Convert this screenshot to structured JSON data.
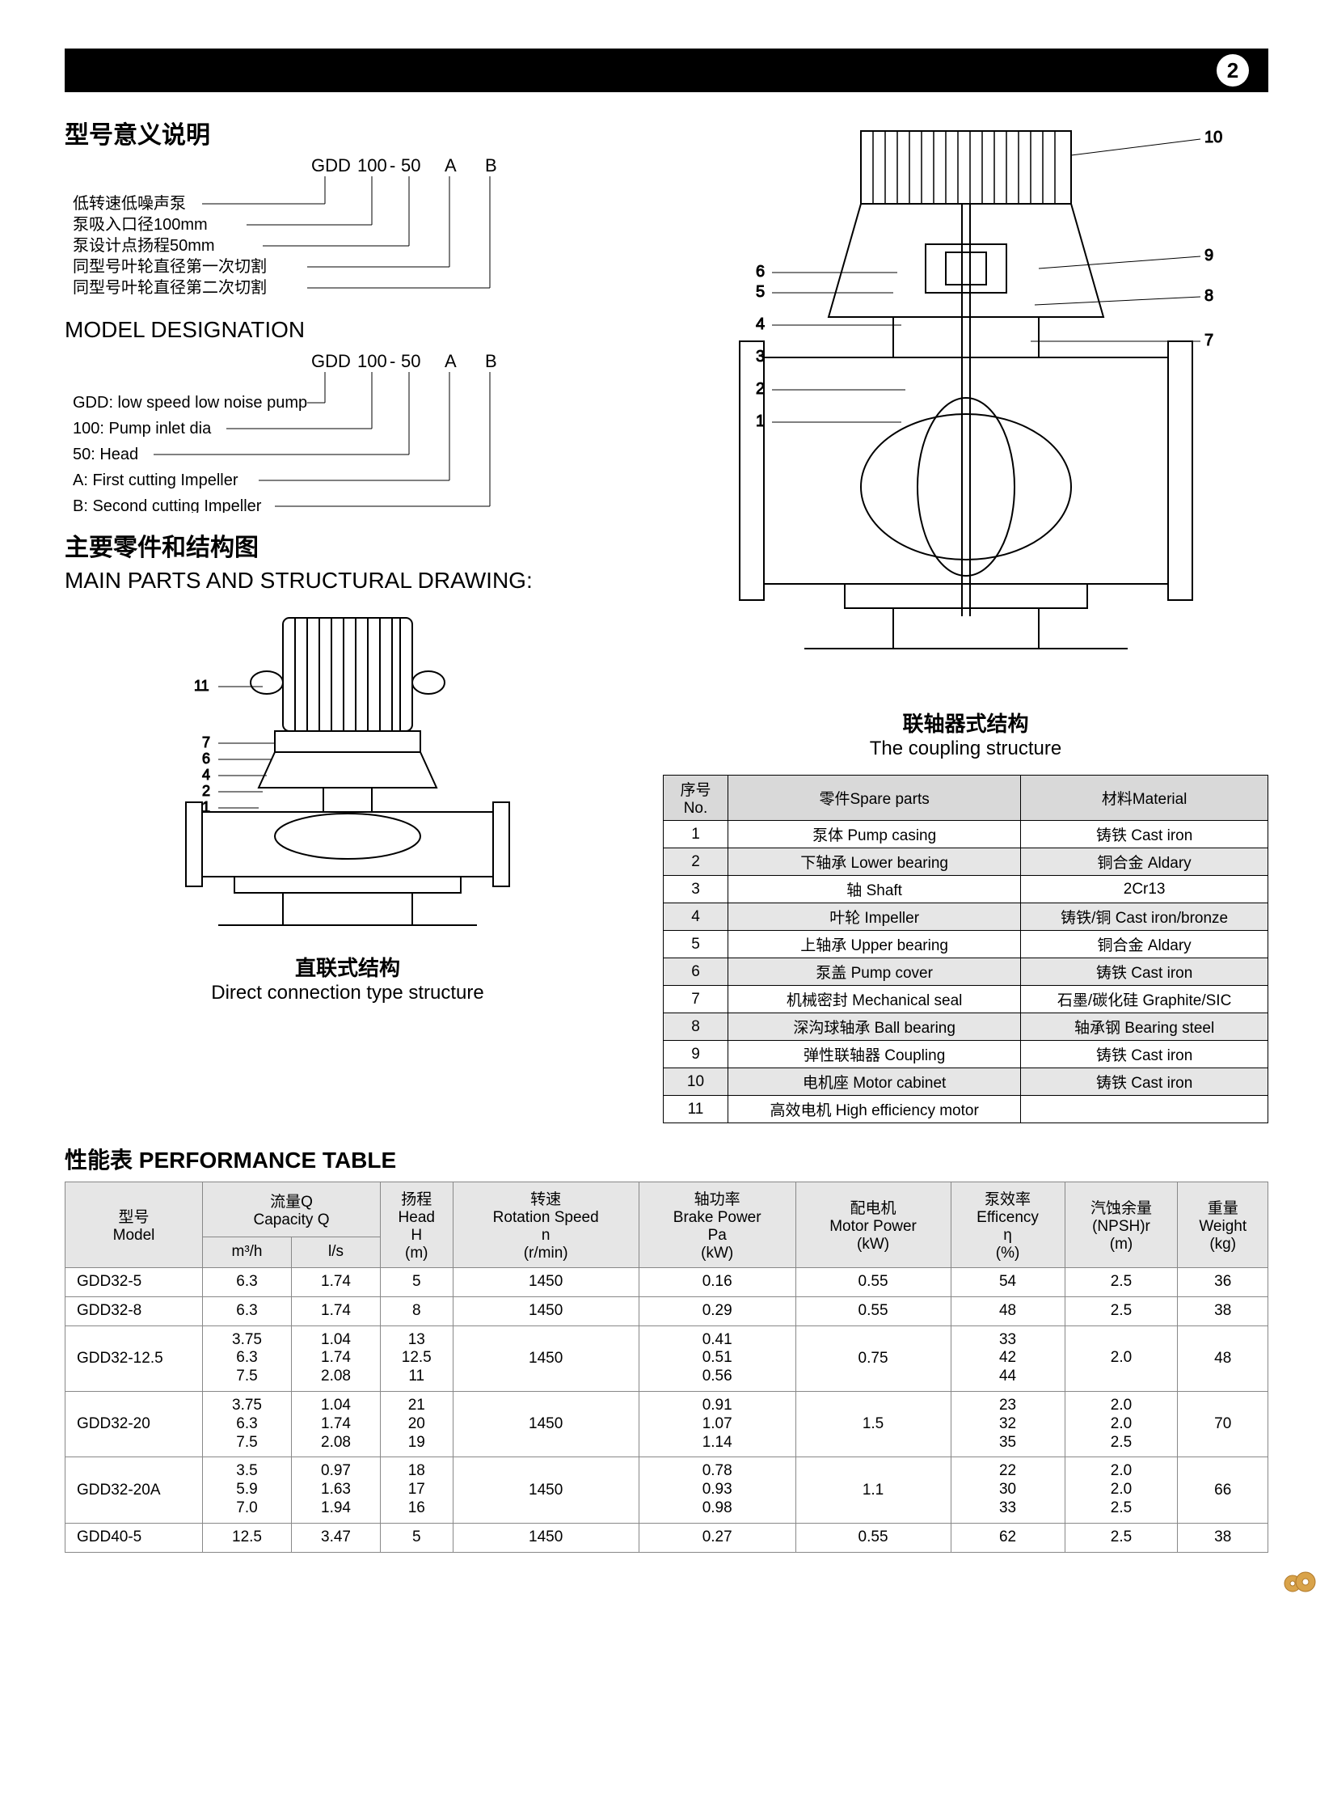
{
  "page_number": "2",
  "titles": {
    "model_desig_cn": "型号意义说明",
    "model_desig_en": "MODEL DESIGNATION",
    "main_parts_cn": "主要零件和结构图",
    "main_parts_en": "MAIN PARTS AND STRUCTURAL DRAWING:",
    "perf_cn": "性能表",
    "perf_en": "PERFORMANCE TABLE"
  },
  "model_code": {
    "p0": "GDD",
    "p1": "100",
    "p2": "-",
    "p3": "50",
    "p4": "A",
    "p5": "B"
  },
  "designation_cn": [
    "低转速低噪声泵",
    "泵吸入口径100mm",
    "泵设计点扬程50mm",
    "同型号叶轮直径第一次切割",
    "同型号叶轮直径第二次切割"
  ],
  "designation_en": [
    "GDD: low speed low noise pump",
    "100: Pump inlet dia",
    "50: Head",
    "A: First cutting Impeller",
    "B: Second cutting Impeller"
  ],
  "drawings": {
    "coupling_cn": "联轴器式结构",
    "coupling_en": "The coupling structure",
    "direct_cn": "直联式结构",
    "direct_en": "Direct connection type structure",
    "direct_callouts": [
      "11",
      "7",
      "6",
      "4",
      "2",
      "1"
    ],
    "coupling_left": [
      "6",
      "5",
      "4",
      "3",
      "2",
      "1"
    ],
    "coupling_right": [
      "10",
      "9",
      "8",
      "7"
    ]
  },
  "parts_table": {
    "headers": {
      "no": "序号\nNo.",
      "parts": "零件Spare parts",
      "material": "材料Material"
    },
    "rows": [
      {
        "no": "1",
        "p": "泵体 Pump casing",
        "m": "铸铁 Cast iron"
      },
      {
        "no": "2",
        "p": "下轴承 Lower bearing",
        "m": "铜合金 Aldary"
      },
      {
        "no": "3",
        "p": "轴 Shaft",
        "m": "2Cr13"
      },
      {
        "no": "4",
        "p": "叶轮 Impeller",
        "m": "铸铁/铜 Cast iron/bronze"
      },
      {
        "no": "5",
        "p": "上轴承 Upper bearing",
        "m": "铜合金 Aldary"
      },
      {
        "no": "6",
        "p": "泵盖 Pump cover",
        "m": "铸铁 Cast iron"
      },
      {
        "no": "7",
        "p": "机械密封 Mechanical seal",
        "m": "石墨/碳化硅 Graphite/SIC"
      },
      {
        "no": "8",
        "p": "深沟球轴承 Ball bearing",
        "m": "轴承钢 Bearing steel"
      },
      {
        "no": "9",
        "p": "弹性联轴器 Coupling",
        "m": "铸铁 Cast iron"
      },
      {
        "no": "10",
        "p": "电机座 Motor cabinet",
        "m": "铸铁 Cast iron"
      },
      {
        "no": "11",
        "p": "高效电机 High efficiency motor",
        "m": ""
      }
    ]
  },
  "perf_table": {
    "headers": {
      "model_cn": "型号",
      "model_en": "Model",
      "cap_cn": "流量Q",
      "cap_en": "Capacity Q",
      "cap_u1": "m³/h",
      "cap_u2": "l/s",
      "head_cn": "扬程",
      "head_en": "Head",
      "head_sym": "H",
      "head_u": "(m)",
      "speed_cn": "转速",
      "speed_en": "Rotation Speed",
      "speed_sym": "n",
      "speed_u": "(r/min)",
      "brake_cn": "轴功率",
      "brake_en": "Brake Power",
      "brake_sym": "Pa",
      "brake_u": "(kW)",
      "motor_cn": "配电机",
      "motor_en": "Motor Power",
      "motor_u": "(kW)",
      "eff_cn": "泵效率",
      "eff_en": "Efficency",
      "eff_sym": "η",
      "eff_u": "(%)",
      "npsh_cn": "汽蚀余量",
      "npsh_en": "(NPSH)r",
      "npsh_u": "(m)",
      "weight_cn": "重量",
      "weight_en": "Weight",
      "weight_u": "(kg)"
    },
    "rows": [
      {
        "model": "GDD32-5",
        "m3h": "6.3",
        "ls": "1.74",
        "head": "5",
        "speed": "1450",
        "brake": "0.16",
        "motor": "0.55",
        "eff": "54",
        "npsh": "2.5",
        "weight": "36"
      },
      {
        "model": "GDD32-8",
        "m3h": "6.3",
        "ls": "1.74",
        "head": "8",
        "speed": "1450",
        "brake": "0.29",
        "motor": "0.55",
        "eff": "48",
        "npsh": "2.5",
        "weight": "38"
      },
      {
        "model": "GDD32-12.5",
        "m3h": "3.75\n6.3\n7.5",
        "ls": "1.04\n1.74\n2.08",
        "head": "13\n12.5\n11",
        "speed": "1450",
        "brake": "0.41\n0.51\n0.56",
        "motor": "0.75",
        "eff": "33\n42\n44",
        "npsh": "2.0",
        "weight": "48"
      },
      {
        "model": "GDD32-20",
        "m3h": "3.75\n6.3\n7.5",
        "ls": "1.04\n1.74\n2.08",
        "head": "21\n20\n19",
        "speed": "1450",
        "brake": "0.91\n1.07\n1.14",
        "motor": "1.5",
        "eff": "23\n32\n35",
        "npsh": "2.0\n2.0\n2.5",
        "weight": "70"
      },
      {
        "model": "GDD32-20A",
        "m3h": "3.5\n5.9\n7.0",
        "ls": "0.97\n1.63\n1.94",
        "head": "18\n17\n16",
        "speed": "1450",
        "brake": "0.78\n0.93\n0.98",
        "motor": "1.1",
        "eff": "22\n30\n33",
        "npsh": "2.0\n2.0\n2.5",
        "weight": "66"
      },
      {
        "model": "GDD40-5",
        "m3h": "12.5",
        "ls": "3.47",
        "head": "5",
        "speed": "1450",
        "brake": "0.27",
        "motor": "0.55",
        "eff": "62",
        "npsh": "2.5",
        "weight": "38"
      }
    ]
  }
}
